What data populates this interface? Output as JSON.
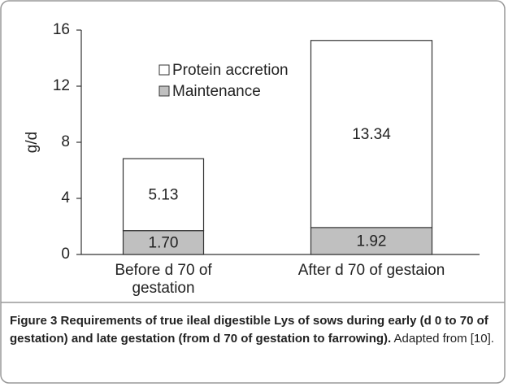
{
  "chart_data": {
    "type": "stacked_bar",
    "ylabel": "g/d",
    "categories": [
      "Before d 70 of gestation",
      "After d 70 of gestaion"
    ],
    "series": [
      {
        "name": "Maintenance",
        "color": "#c0c0c0",
        "values": [
          1.7,
          1.92
        ],
        "value_labels": [
          "1.70",
          "1.92"
        ]
      },
      {
        "name": "Protein accretion",
        "color": "#ffffff",
        "values": [
          5.13,
          13.34
        ]
      }
    ],
    "ylim": [
      0,
      16
    ],
    "yticks": [
      0,
      4,
      8,
      12,
      16
    ],
    "grid": false,
    "legend": "upper left"
  },
  "caption": {
    "label": "Figure 3",
    "title": "Requirements of true ileal digestible Lys of sows during early (d 0 to 70 of gestation) and late gestation (from d 70 of gestation to farrowing).",
    "note": "Adapted from [10]."
  }
}
